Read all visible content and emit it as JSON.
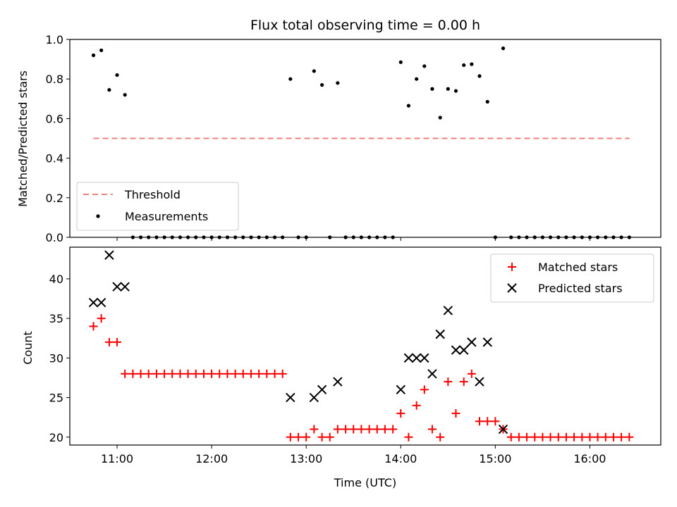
{
  "colors": {
    "threshold": "#f08080",
    "matched": "#ff0000",
    "predicted": "#000000",
    "measurement": "#000000"
  },
  "chart_data": [
    {
      "type": "scatter",
      "title": "Flux total observing time = 0.00 h",
      "xlabel": "",
      "ylabel": "Matched/Predicted stars",
      "xlim": [
        10.5,
        16.75
      ],
      "ylim": [
        0,
        1.0
      ],
      "yticks": [
        "0.0",
        "0.2",
        "0.4",
        "0.6",
        "0.8",
        "1.0"
      ],
      "legend": [
        "Threshold",
        "Measurements"
      ],
      "legend_loc": "lower-left",
      "threshold": {
        "name": "Threshold",
        "y": 0.5,
        "x_range": [
          10.75,
          16.42
        ]
      },
      "measurements": {
        "name": "Measurements",
        "x": [
          10.75,
          10.833,
          10.917,
          11.0,
          11.083,
          11.167,
          11.25,
          11.333,
          11.417,
          11.5,
          11.583,
          11.667,
          11.75,
          11.833,
          11.917,
          12.0,
          12.083,
          12.167,
          12.25,
          12.333,
          12.417,
          12.5,
          12.583,
          12.667,
          12.75,
          12.833,
          12.917,
          13.0,
          13.083,
          13.167,
          13.25,
          13.333,
          13.417,
          13.5,
          13.583,
          13.667,
          13.75,
          13.833,
          13.917,
          14.0,
          14.083,
          14.167,
          14.25,
          14.333,
          14.417,
          14.5,
          14.583,
          14.667,
          14.75,
          14.833,
          14.917,
          15.0,
          15.083,
          15.167,
          15.25,
          15.333,
          15.417,
          15.5,
          15.583,
          15.667,
          15.75,
          15.833,
          15.917,
          16.0,
          16.083,
          16.167,
          16.25,
          16.333,
          16.417
        ],
        "y": [
          0.92,
          0.945,
          0.745,
          0.82,
          0.72,
          0.0,
          0.0,
          0.0,
          0.0,
          0.0,
          0.0,
          0.0,
          0.0,
          0.0,
          0.0,
          0.0,
          0.0,
          0.0,
          0.0,
          0.0,
          0.0,
          0.0,
          0.0,
          0.0,
          0.0,
          0.8,
          0.0,
          0.0,
          0.84,
          0.77,
          0.0,
          0.78,
          0.0,
          0.0,
          0.0,
          0.0,
          0.0,
          0.0,
          0.0,
          0.885,
          0.665,
          0.8,
          0.865,
          0.75,
          0.605,
          0.75,
          0.74,
          0.87,
          0.875,
          0.815,
          0.685,
          0.0,
          0.955,
          0.0,
          0.0,
          0.0,
          0.0,
          0.0,
          0.0,
          0.0,
          0.0,
          0.0,
          0.0,
          0.0,
          0.0,
          0.0,
          0.0,
          0.0,
          0.0
        ]
      }
    },
    {
      "type": "scatter",
      "title": "",
      "xlabel": "Time (UTC)",
      "ylabel": "Count",
      "xlim": [
        10.5,
        16.75
      ],
      "ylim": [
        19,
        44
      ],
      "yticks": [
        "20",
        "25",
        "30",
        "35",
        "40"
      ],
      "xticks": [
        "11:00",
        "12:00",
        "13:00",
        "14:00",
        "15:00",
        "16:00"
      ],
      "legend": [
        "Matched stars",
        "Predicted stars"
      ],
      "legend_loc": "upper-right",
      "x": [
        10.75,
        10.833,
        10.917,
        11.0,
        11.083,
        11.167,
        11.25,
        11.333,
        11.417,
        11.5,
        11.583,
        11.667,
        11.75,
        11.833,
        11.917,
        12.0,
        12.083,
        12.167,
        12.25,
        12.333,
        12.417,
        12.5,
        12.583,
        12.667,
        12.75,
        12.833,
        12.917,
        13.0,
        13.083,
        13.167,
        13.25,
        13.333,
        13.417,
        13.5,
        13.583,
        13.667,
        13.75,
        13.833,
        13.917,
        14.0,
        14.083,
        14.167,
        14.25,
        14.333,
        14.417,
        14.5,
        14.583,
        14.667,
        14.75,
        14.833,
        14.917,
        15.0,
        15.083,
        15.167,
        15.25,
        15.333,
        15.417,
        15.5,
        15.583,
        15.667,
        15.75,
        15.833,
        15.917,
        16.0,
        16.083,
        16.167,
        16.25,
        16.333,
        16.417
      ],
      "series": [
        {
          "name": "Matched stars",
          "marker": "plus",
          "values": [
            34,
            35,
            32,
            32,
            28,
            28,
            28,
            28,
            28,
            28,
            28,
            28,
            28,
            28,
            28,
            28,
            28,
            28,
            28,
            28,
            28,
            28,
            28,
            28,
            28,
            20,
            20,
            20,
            21,
            20,
            20,
            21,
            21,
            21,
            21,
            21,
            21,
            21,
            21,
            23,
            20,
            24,
            26,
            21,
            20,
            27,
            23,
            27,
            28,
            22,
            22,
            22,
            21,
            20,
            20,
            20,
            20,
            20,
            20,
            20,
            20,
            20,
            20,
            20,
            20,
            20,
            20,
            20,
            20
          ]
        },
        {
          "name": "Predicted stars",
          "marker": "x",
          "values": [
            37,
            37,
            43,
            39,
            39,
            null,
            null,
            null,
            null,
            null,
            null,
            null,
            null,
            null,
            null,
            null,
            null,
            null,
            null,
            null,
            null,
            null,
            null,
            null,
            null,
            25,
            null,
            null,
            25,
            26,
            null,
            27,
            null,
            null,
            null,
            null,
            null,
            null,
            null,
            26,
            30,
            30,
            30,
            28,
            33,
            36,
            31,
            31,
            32,
            27,
            32,
            null,
            21,
            null,
            null,
            null,
            null,
            null,
            null,
            null,
            null,
            null,
            null,
            null,
            null,
            null,
            null,
            null,
            null
          ]
        }
      ]
    }
  ]
}
